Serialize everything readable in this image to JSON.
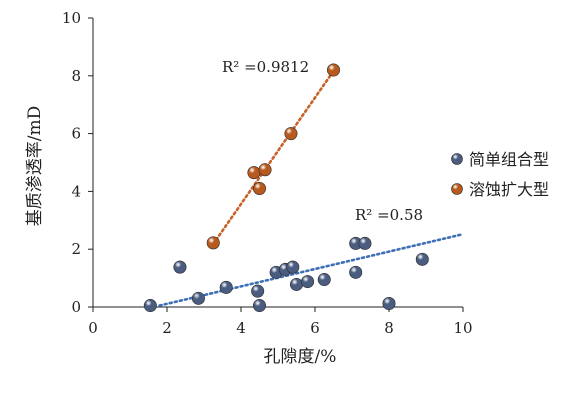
{
  "chart_data": {
    "type": "scatter",
    "xlabel": "孔隙度/%",
    "ylabel": "基质渗透率/mD",
    "xlim": [
      0,
      10
    ],
    "ylim": [
      0,
      10
    ],
    "xticks": [
      0,
      2,
      4,
      6,
      8,
      10
    ],
    "yticks": [
      0,
      2,
      4,
      6,
      8,
      10
    ],
    "grid": false,
    "legend_position": "right",
    "series": [
      {
        "name": "简单组合型",
        "color": "#4a5d80",
        "trend": {
          "type": "linear",
          "color": "#3f6fb5",
          "x_from": 1.8,
          "x_to": 10,
          "y_from": 0.05,
          "y_to": 2.52,
          "r2_text": "R² =0.58"
        },
        "points": [
          {
            "x": 1.55,
            "y": 0.05
          },
          {
            "x": 2.35,
            "y": 1.38
          },
          {
            "x": 2.85,
            "y": 0.3
          },
          {
            "x": 3.6,
            "y": 0.68
          },
          {
            "x": 4.45,
            "y": 0.55
          },
          {
            "x": 4.5,
            "y": 0.05
          },
          {
            "x": 4.95,
            "y": 1.2
          },
          {
            "x": 5.2,
            "y": 1.3
          },
          {
            "x": 5.4,
            "y": 1.38
          },
          {
            "x": 5.5,
            "y": 0.78
          },
          {
            "x": 5.8,
            "y": 0.88
          },
          {
            "x": 6.25,
            "y": 0.95
          },
          {
            "x": 7.1,
            "y": 2.2
          },
          {
            "x": 7.35,
            "y": 2.2
          },
          {
            "x": 7.1,
            "y": 1.2
          },
          {
            "x": 8.0,
            "y": 0.12
          },
          {
            "x": 8.9,
            "y": 1.65
          }
        ]
      },
      {
        "name": "溶蚀扩大型",
        "color": "#b85a1e",
        "trend": {
          "type": "linear",
          "color": "#c8612a",
          "x_from": 3.25,
          "x_to": 6.6,
          "y_from": 2.18,
          "y_to": 8.35,
          "r2_text": "R² =0.9812"
        },
        "points": [
          {
            "x": 3.25,
            "y": 2.22
          },
          {
            "x": 4.35,
            "y": 4.65
          },
          {
            "x": 4.5,
            "y": 4.1
          },
          {
            "x": 4.65,
            "y": 4.75
          },
          {
            "x": 5.35,
            "y": 6.0
          },
          {
            "x": 6.5,
            "y": 8.2
          }
        ]
      }
    ]
  }
}
